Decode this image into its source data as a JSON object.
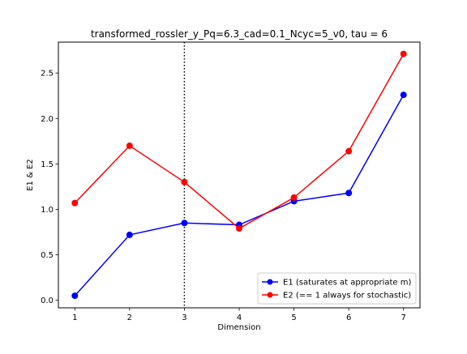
{
  "chart_data": {
    "type": "line",
    "title": "transformed_rossler_y_Pq=6.3_cad=0.1_Ncyc=5_v0, tau = 6",
    "xlabel": "Dimension",
    "ylabel": "E1 & E2",
    "x": [
      1,
      2,
      3,
      4,
      5,
      6,
      7
    ],
    "xlim": [
      0.7,
      7.3
    ],
    "ylim": [
      -0.083,
      2.84
    ],
    "xticks": [
      "1",
      "2",
      "3",
      "4",
      "5",
      "6",
      "7"
    ],
    "yticks": [
      {
        "value": 0.0,
        "label": "0.0"
      },
      {
        "value": 0.5,
        "label": "0.5"
      },
      {
        "value": 1.0,
        "label": "1.0"
      },
      {
        "value": 1.5,
        "label": "1.5"
      },
      {
        "value": 2.0,
        "label": "2.0"
      },
      {
        "value": 2.5,
        "label": "2.5"
      }
    ],
    "vline": {
      "x": 3,
      "style": "dotted",
      "color": "#000000"
    },
    "grid": false,
    "legend_position": "lower-right",
    "series": [
      {
        "name": "E1 (saturates at appropriate m)",
        "color": "#0000ff",
        "values": [
          0.05,
          0.72,
          0.85,
          0.83,
          1.09,
          1.18,
          2.26
        ]
      },
      {
        "name": "E2 (== 1 always for stochastic)",
        "color": "#ff0000",
        "values": [
          1.07,
          1.7,
          1.3,
          0.79,
          1.13,
          1.64,
          2.71
        ]
      }
    ]
  }
}
